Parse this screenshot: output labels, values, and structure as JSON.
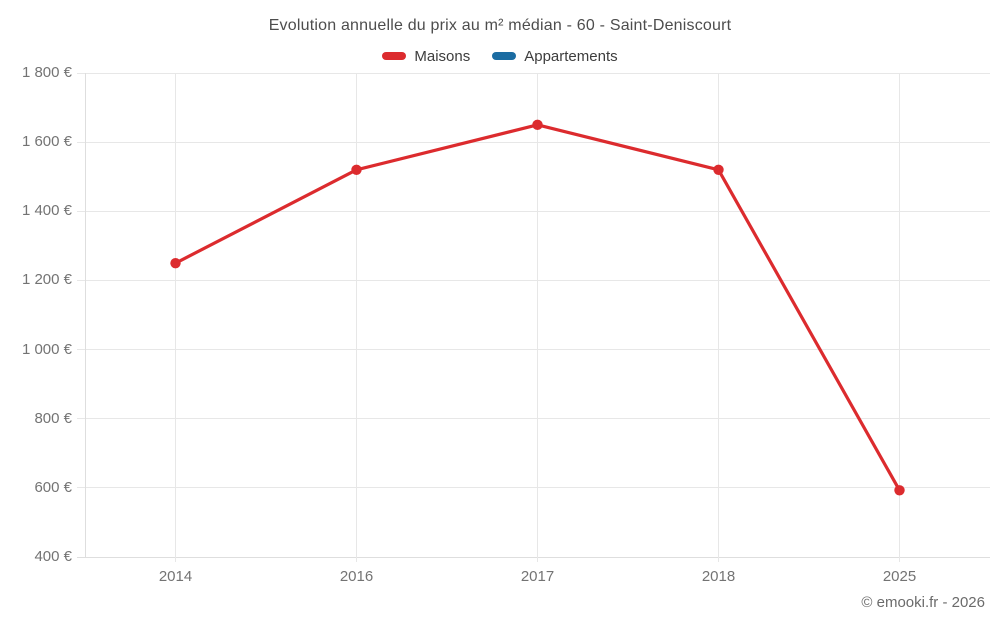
{
  "chart_data": {
    "type": "line",
    "title": "Evolution annuelle du prix au m² médian - 60 - Saint-Deniscourt",
    "categories": [
      "2014",
      "2016",
      "2017",
      "2018",
      "2025"
    ],
    "series": [
      {
        "name": "Maisons",
        "color": "#dc2b2e",
        "values": [
          1250,
          1520,
          1650,
          1520,
          593
        ]
      },
      {
        "name": "Appartements",
        "color": "#1b6ca2",
        "values": []
      }
    ],
    "xlabel": "",
    "ylabel": "",
    "ylim": [
      400,
      1800
    ],
    "ytick_step": 200,
    "ytick_labels": [
      "400 €",
      "600 €",
      "800 €",
      "1 000 €",
      "1 200 €",
      "1 400 €",
      "1 600 €",
      "1 800 €"
    ],
    "grid": true,
    "legend_position": "top",
    "colors": {
      "gridline": "#e7e7e7",
      "axis": "#dedede",
      "tick_text": "#737373",
      "title_text": "#4d4d4d"
    }
  },
  "footer": {
    "copyright": "© emooki.fr - 2026"
  }
}
